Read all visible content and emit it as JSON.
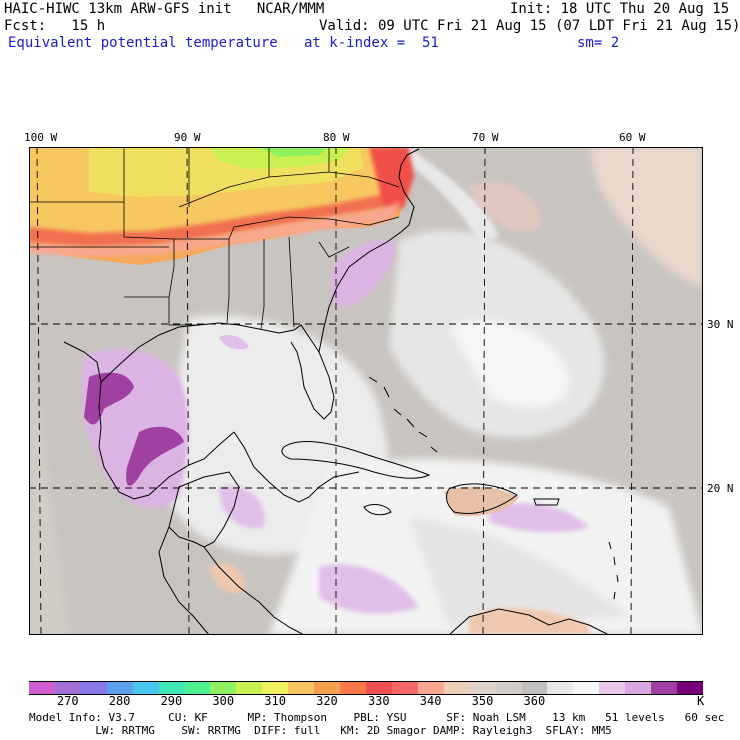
{
  "header": {
    "line1_left": "HAIC-HIWC 13km ARW-GFS init   NCAR/MMM",
    "line1_right": "Init: 18 UTC Thu 20 Aug 15",
    "line2_left": "Fcst:   15 h",
    "line2_right": "Valid: 09 UTC Fri 21 Aug 15 (07 LDT Fri 21 Aug 15)",
    "field_name": "Equivalent potential temperature",
    "level": "at k-index =  51",
    "smoothing": "sm= 2"
  },
  "map": {
    "lon_labels": [
      "100 W",
      "90 W",
      "80 W",
      "70 W",
      "60 W"
    ],
    "lat_labels": [
      "30 N",
      "20 N"
    ]
  },
  "colorbar": {
    "colors": [
      "#d060d0",
      "#a070d8",
      "#8878e8",
      "#60a0f0",
      "#48c8f0",
      "#40e8b8",
      "#50f090",
      "#90f060",
      "#c8f050",
      "#f0f060",
      "#f8c860",
      "#f8a050",
      "#f87848",
      "#f05050",
      "#f46868",
      "#f8a890",
      "#f0d0b8",
      "#e0d4cc",
      "#d4ccc8",
      "#c0c0c0",
      "#e8e8e8",
      "#f8f8f8",
      "#e8c8e8",
      "#d8a8e0",
      "#a040a0",
      "#780078"
    ],
    "labels": [
      "270",
      "280",
      "290",
      "300",
      "310",
      "320",
      "330",
      "340",
      "350",
      "360"
    ],
    "unit": "K"
  },
  "footer": {
    "line1": "Model Info: V3.7     CU: KF      MP: Thompson    PBL: YSU      SF: Noah LSM    13 km   51 levels   60 sec",
    "line2": "          LW: RRTMG    SW: RRTMG  DIFF: full   KM: 2D Smagor DAMP: Rayleigh3  SFLAY: MM5"
  }
}
